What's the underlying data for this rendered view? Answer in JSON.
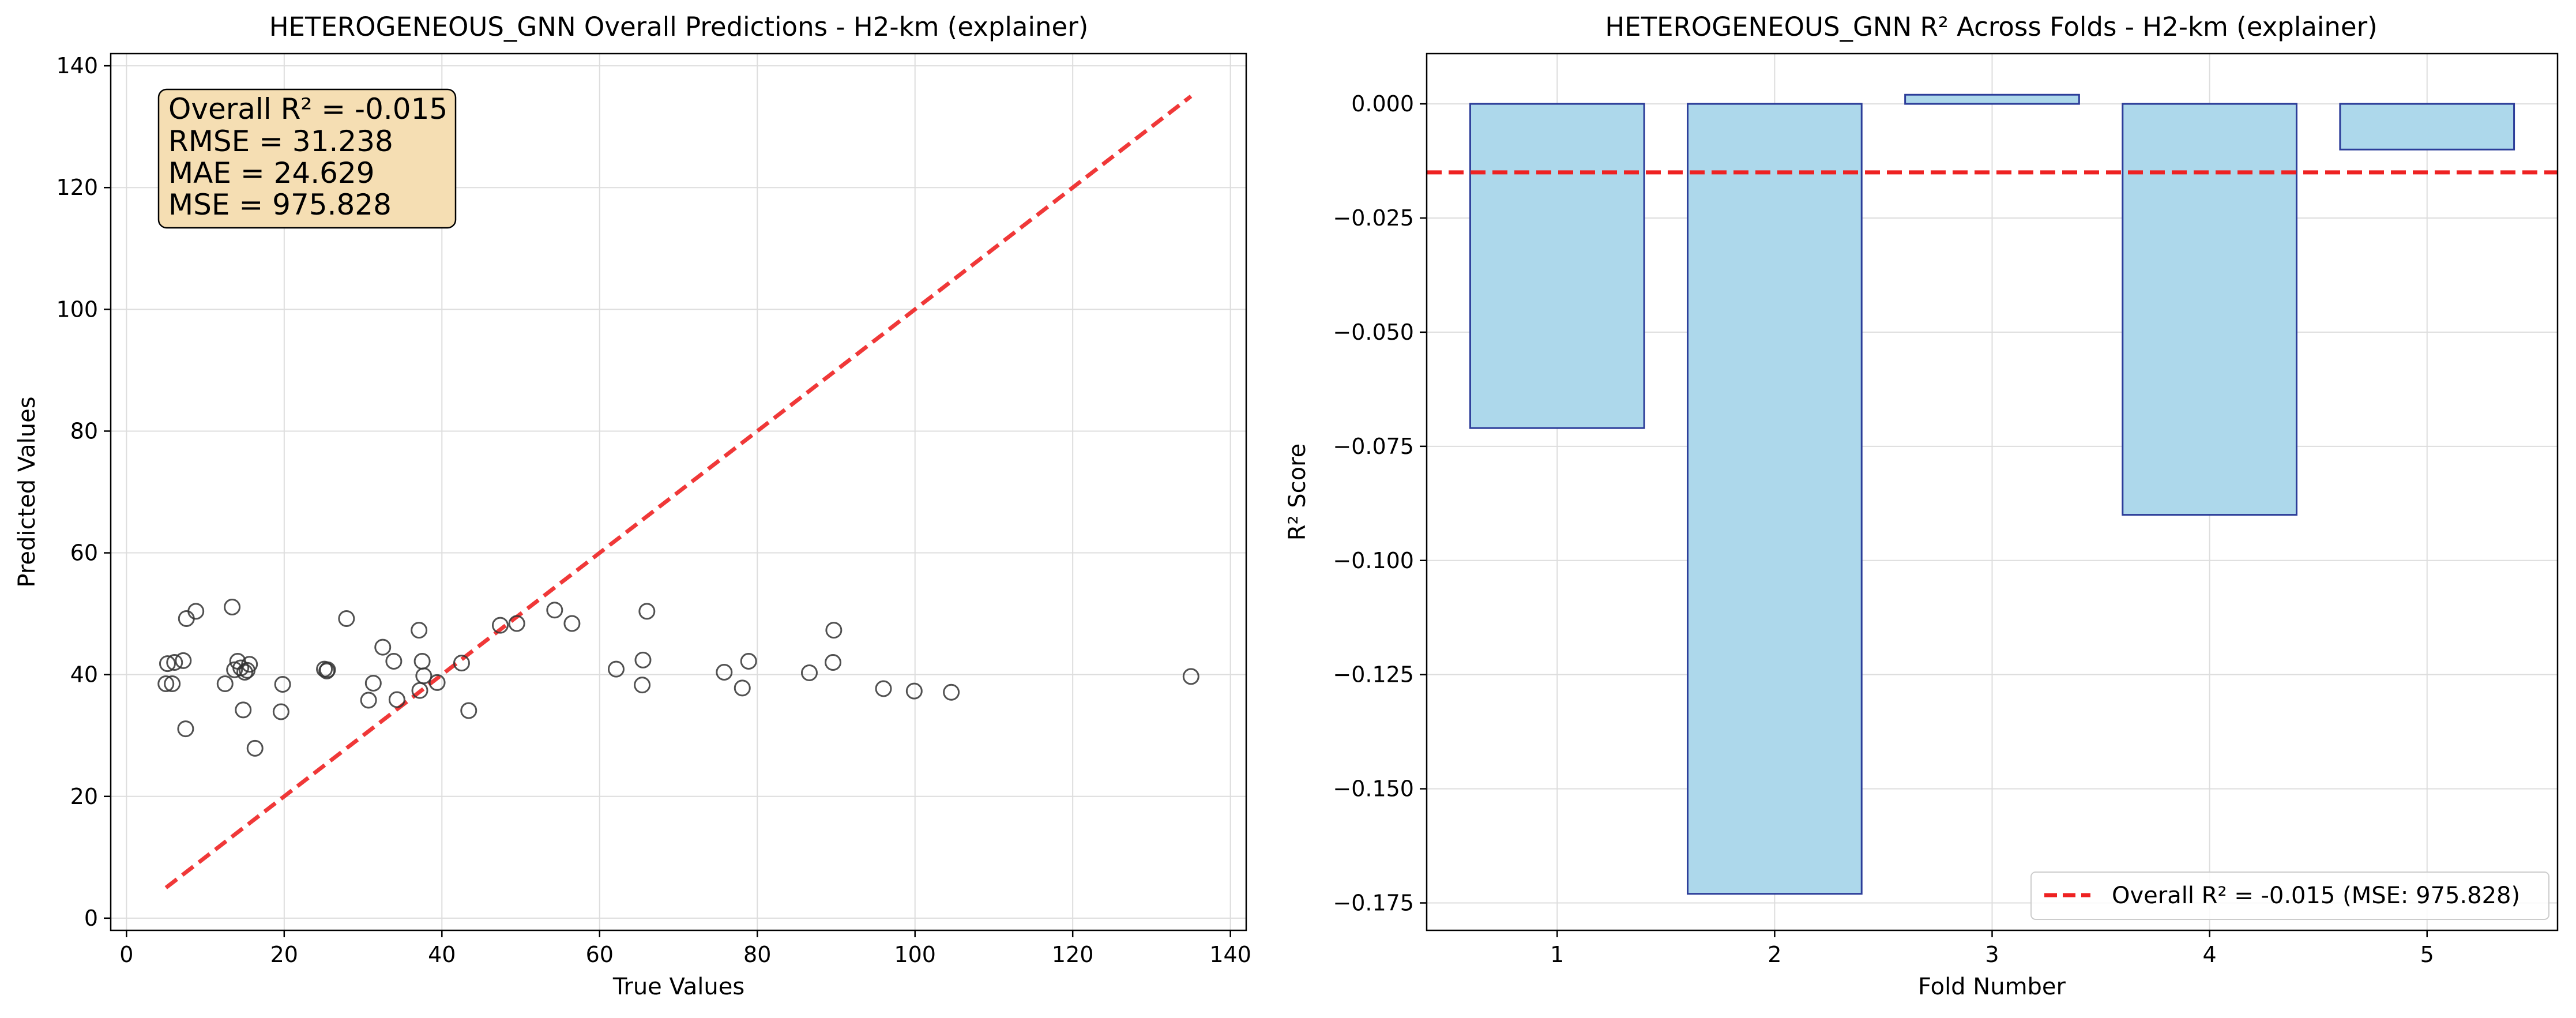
{
  "chart_data": [
    {
      "type": "scatter",
      "title": "HETEROGENEOUS_GNN Overall Predictions - H2-km (explainer)",
      "xlabel": "True Values",
      "ylabel": "Predicted Values",
      "xlim": [
        -2,
        142
      ],
      "ylim": [
        -2,
        142
      ],
      "xticks": [
        0,
        20,
        40,
        60,
        80,
        100,
        120,
        140
      ],
      "yticks": [
        0,
        20,
        40,
        60,
        80,
        100,
        120,
        140
      ],
      "grid": true,
      "marker": "hollow circle",
      "point_color": "#333333",
      "reference_line": {
        "x": [
          5,
          135
        ],
        "y": [
          5,
          135
        ],
        "style": "dashed",
        "color": "#ee2222"
      },
      "stats_box": {
        "lines": [
          "Overall R² = -0.015",
          "RMSE = 31.238",
          "MAE = 24.629",
          "MSE = 975.828"
        ],
        "background": "#f5deb3",
        "placement": "top-left"
      },
      "points": [
        [
          5,
          38.5
        ],
        [
          5.2,
          41.8
        ],
        [
          5.8,
          38.5
        ],
        [
          6.1,
          42
        ],
        [
          7.2,
          42.3
        ],
        [
          7.5,
          31.1
        ],
        [
          7.6,
          49.2
        ],
        [
          8.8,
          50.4
        ],
        [
          12.5,
          38.5
        ],
        [
          13.4,
          51.1
        ],
        [
          13.7,
          40.8
        ],
        [
          14.1,
          42.2
        ],
        [
          14.5,
          41.1
        ],
        [
          14.8,
          34.2
        ],
        [
          15,
          40.4
        ],
        [
          15.3,
          40.7
        ],
        [
          15.6,
          41.7
        ],
        [
          16.3,
          27.9
        ],
        [
          19.6,
          33.9
        ],
        [
          19.8,
          38.4
        ],
        [
          25.1,
          40.9
        ],
        [
          25.4,
          40.6
        ],
        [
          25.5,
          40.8
        ],
        [
          27.9,
          49.2
        ],
        [
          30.7,
          35.8
        ],
        [
          31.3,
          38.6
        ],
        [
          32.5,
          44.5
        ],
        [
          33.9,
          42.2
        ],
        [
          34.3,
          35.9
        ],
        [
          37.1,
          47.3
        ],
        [
          37.2,
          37.4
        ],
        [
          37.5,
          42.2
        ],
        [
          37.7,
          39.8
        ],
        [
          39.4,
          38.7
        ],
        [
          42.5,
          41.9
        ],
        [
          43.4,
          34.1
        ],
        [
          47.4,
          48.1
        ],
        [
          49.5,
          48.4
        ],
        [
          54.3,
          50.6
        ],
        [
          56.5,
          48.4
        ],
        [
          62.1,
          40.9
        ],
        [
          65.4,
          38.3
        ],
        [
          65.5,
          42.4
        ],
        [
          66,
          50.4
        ],
        [
          75.8,
          40.4
        ],
        [
          78.1,
          37.8
        ],
        [
          78.9,
          42.2
        ],
        [
          86.6,
          40.3
        ],
        [
          89.6,
          42
        ],
        [
          89.7,
          47.3
        ],
        [
          96,
          37.7
        ],
        [
          99.9,
          37.3
        ],
        [
          104.6,
          37.1
        ],
        [
          135,
          39.7
        ]
      ]
    },
    {
      "type": "bar",
      "title": "HETEROGENEOUS_GNN R² Across Folds - H2-km (explainer)",
      "xlabel": "Fold Number",
      "ylabel": "R² Score",
      "categories": [
        "1",
        "2",
        "3",
        "4",
        "5"
      ],
      "values": [
        -0.071,
        -0.173,
        0.002,
        -0.09,
        -0.01
      ],
      "ylim": [
        -0.181,
        0.011
      ],
      "yticks": [
        0.0,
        -0.025,
        -0.05,
        -0.075,
        -0.1,
        -0.125,
        -0.15,
        -0.175
      ],
      "ytick_labels": [
        "0.000",
        "−0.025",
        "−0.050",
        "−0.075",
        "−0.100",
        "−0.125",
        "−0.150",
        "−0.175"
      ],
      "grid": true,
      "bar_color": "#add8eb",
      "bar_edge_color": "#2c3d99",
      "reference_line": {
        "y": -0.015,
        "style": "dashed",
        "color": "#ee2222"
      },
      "legend": {
        "entries": [
          "Overall R² = -0.015 (MSE: 975.828)"
        ],
        "placement": "lower-right"
      }
    }
  ]
}
